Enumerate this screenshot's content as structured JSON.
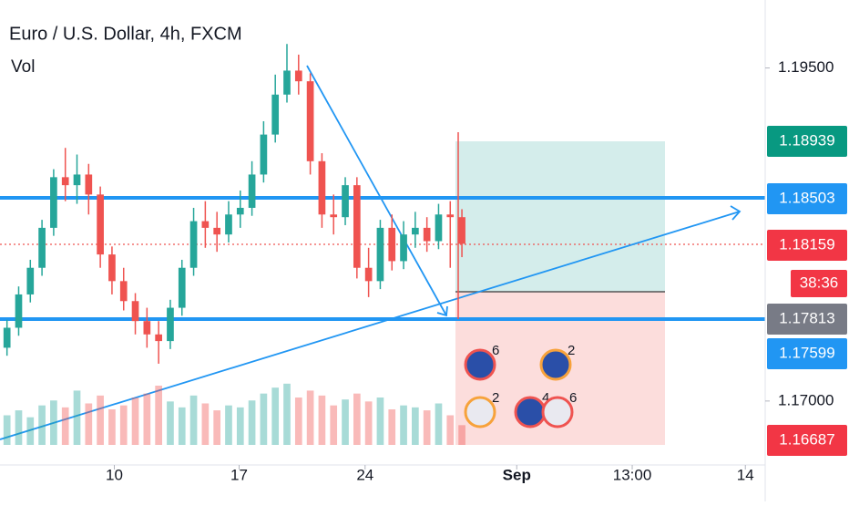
{
  "chart_data": {
    "type": "candlestick",
    "title": "Euro / U.S. Dollar, 4h, FXCM",
    "volume_label": "Vol",
    "up_color": "#26a69a",
    "down_color": "#ef5350",
    "ylim": [
      1.1652,
      1.2001
    ],
    "yticks": [
      {
        "value": 1.195,
        "label": "1.19500"
      },
      {
        "value": 1.17,
        "label": "1.17000"
      }
    ],
    "xlim": [
      -0.6,
      65
    ],
    "xticks": [
      {
        "value": 9.2,
        "label": "10"
      },
      {
        "value": 19.9,
        "label": "17"
      },
      {
        "value": 30.7,
        "label": "24"
      },
      {
        "value": 43.7,
        "label": "Sep"
      },
      {
        "value": 53.6,
        "label": "13:00"
      },
      {
        "value": 63.3,
        "label": "14"
      }
    ],
    "candles": [
      [
        1.174,
        1.1761,
        1.1734,
        1.1755
      ],
      [
        1.1755,
        1.1786,
        1.1749,
        1.178
      ],
      [
        1.178,
        1.1806,
        1.1774,
        1.18
      ],
      [
        1.18,
        1.1836,
        1.1794,
        1.183
      ],
      [
        1.183,
        1.1874,
        1.1824,
        1.1868
      ],
      [
        1.1868,
        1.189,
        1.185,
        1.1862
      ],
      [
        1.1862,
        1.1885,
        1.1848,
        1.187
      ],
      [
        1.187,
        1.1878,
        1.184,
        1.1855
      ],
      [
        1.1855,
        1.1861,
        1.18,
        1.181
      ],
      [
        1.181,
        1.1816,
        1.178,
        1.179
      ],
      [
        1.179,
        1.18,
        1.1768,
        1.1775
      ],
      [
        1.1775,
        1.1781,
        1.175,
        1.176
      ],
      [
        1.176,
        1.177,
        1.174,
        1.175
      ],
      [
        1.175,
        1.176,
        1.1728,
        1.1745
      ],
      [
        1.1745,
        1.1776,
        1.1739,
        1.177
      ],
      [
        1.177,
        1.1806,
        1.1764,
        1.18
      ],
      [
        1.18,
        1.1845,
        1.1794,
        1.1835
      ],
      [
        1.1835,
        1.185,
        1.1815,
        1.183
      ],
      [
        1.183,
        1.1842,
        1.1812,
        1.1825
      ],
      [
        1.1825,
        1.185,
        1.1819,
        1.184
      ],
      [
        1.184,
        1.1858,
        1.183,
        1.1845
      ],
      [
        1.1845,
        1.188,
        1.1839,
        1.187
      ],
      [
        1.187,
        1.191,
        1.1864,
        1.19
      ],
      [
        1.19,
        1.1945,
        1.1894,
        1.193
      ],
      [
        1.193,
        1.1968,
        1.1924,
        1.1948
      ],
      [
        1.1948,
        1.196,
        1.193,
        1.194
      ],
      [
        1.194,
        1.1946,
        1.187,
        1.188
      ],
      [
        1.188,
        1.1886,
        1.183,
        1.184
      ],
      [
        1.184,
        1.1855,
        1.1825,
        1.1838
      ],
      [
        1.1838,
        1.1868,
        1.1832,
        1.1862
      ],
      [
        1.1862,
        1.1868,
        1.1792,
        1.18
      ],
      [
        1.18,
        1.1815,
        1.1778,
        1.179
      ],
      [
        1.179,
        1.1836,
        1.1784,
        1.183
      ],
      [
        1.183,
        1.184,
        1.1798,
        1.1805
      ],
      [
        1.1805,
        1.1835,
        1.1799,
        1.1825
      ],
      [
        1.1825,
        1.1842,
        1.1815,
        1.183
      ],
      [
        1.183,
        1.1838,
        1.1812,
        1.182
      ],
      [
        1.182,
        1.1848,
        1.1814,
        1.184
      ],
      [
        1.184,
        1.185,
        1.18,
        1.1838
      ],
      [
        1.1838,
        1.1844,
        1.1808,
        1.1818
      ]
    ],
    "volume": [
      30,
      35,
      28,
      40,
      45,
      38,
      55,
      42,
      50,
      36,
      40,
      48,
      52,
      60,
      44,
      38,
      50,
      42,
      35,
      40,
      38,
      45,
      52,
      58,
      62,
      48,
      55,
      50,
      40,
      46,
      52,
      44,
      48,
      36,
      40,
      38,
      35,
      42,
      30,
      20
    ],
    "volume_max": 120,
    "price_labels": [
      "1.18939",
      "1.18503",
      "1.18159",
      "38:36",
      "1.17813",
      "1.17599",
      "1.16687"
    ],
    "events": [
      "6",
      "2",
      "2",
      "4",
      "6"
    ]
  }
}
